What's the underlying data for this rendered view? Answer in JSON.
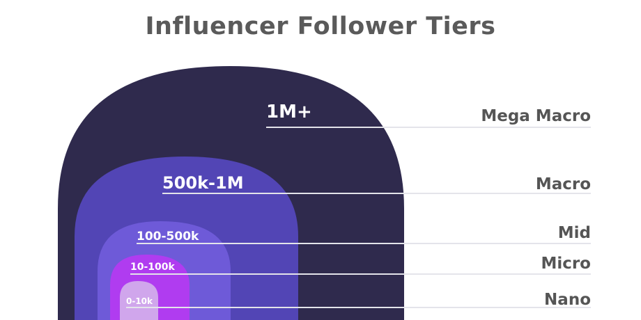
{
  "title": "Influencer Follower Tiers",
  "colors": {
    "mega": "#2f2a4d",
    "macro": "#5245b5",
    "mid": "#6e5ad8",
    "micro": "#b03cf0",
    "nano": "#d0a6ec",
    "line": "#e4e4ea",
    "tier_text": "#555555"
  },
  "tiers": [
    {
      "range": "1M+",
      "name": "Mega Macro"
    },
    {
      "range": "500k-1M",
      "name": "Macro"
    },
    {
      "range": "100-500k",
      "name": "Mid"
    },
    {
      "range": "10-100k",
      "name": "Micro"
    },
    {
      "range": "0-10k",
      "name": "Nano"
    }
  ]
}
